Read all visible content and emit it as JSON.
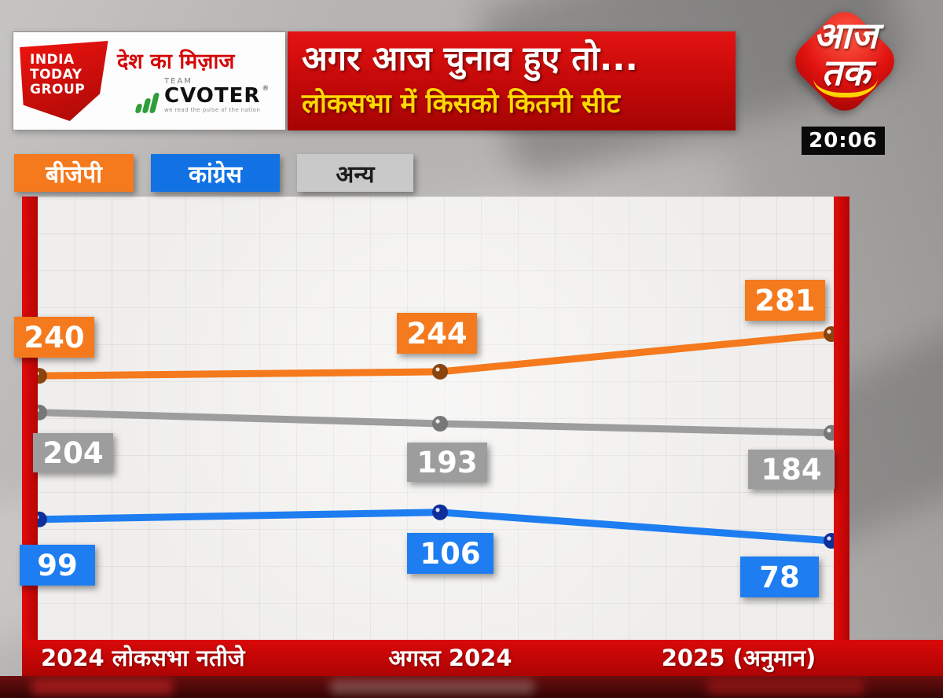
{
  "header": {
    "it_logo": {
      "line1": "INDIA",
      "line2": "TODAY",
      "line3": "GROUP"
    },
    "tagline": "देश का मिज़ाज",
    "cvoter": {
      "team": "TEAM",
      "name": "CVOTER",
      "reg": "®",
      "sub": "we read the pulse of the nation"
    },
    "title_line1": "अगर आज चुनाव हुए तो...",
    "title_line2": "लोकसभा में किसको कितनी सीट",
    "channel": {
      "line1": "आज",
      "line2": "तक"
    },
    "time": "20:06"
  },
  "legend": [
    {
      "label": "बीजेपी",
      "color": "#f5791d"
    },
    {
      "label": "कांग्रेस",
      "color": "#1272e4"
    },
    {
      "label": "अन्य",
      "color": "#c9c9c9"
    }
  ],
  "chart_data": {
    "type": "line",
    "title": "अगर आज चुनाव हुए तो... लोकसभा में किसको कितनी सीट",
    "categories": [
      "2024 लोकसभा नतीजे",
      "अगस्त 2024",
      "2025 (अनुमान)"
    ],
    "series": [
      {
        "name": "बीजेपी",
        "color": "#f5791d",
        "dot_color": "#8a4410",
        "values": [
          240,
          244,
          281
        ]
      },
      {
        "name": "अन्य",
        "color": "#9d9d9d",
        "dot_color": "#777777",
        "values": [
          204,
          193,
          184
        ]
      },
      {
        "name": "कांग्रेस",
        "color": "#1e7df0",
        "dot_color": "#0e2f9a",
        "values": [
          99,
          106,
          78
        ]
      }
    ],
    "value_range": [
      78,
      281
    ],
    "legend_position": "top",
    "grid": true
  }
}
